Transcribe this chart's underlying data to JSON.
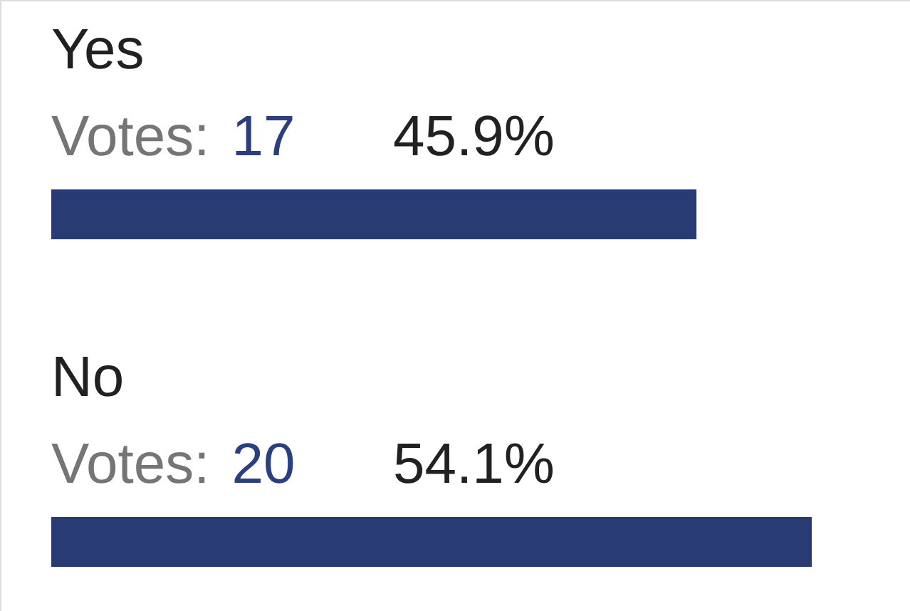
{
  "chart_data": {
    "type": "bar",
    "orientation": "horizontal",
    "categories": [
      "Yes",
      "No"
    ],
    "values": [
      45.9,
      54.1
    ],
    "color": "#283b73",
    "value_labels": [
      "45.9%",
      "54.1%"
    ],
    "annotations": [
      "Votes: 17",
      "Votes: 20"
    ]
  }
}
